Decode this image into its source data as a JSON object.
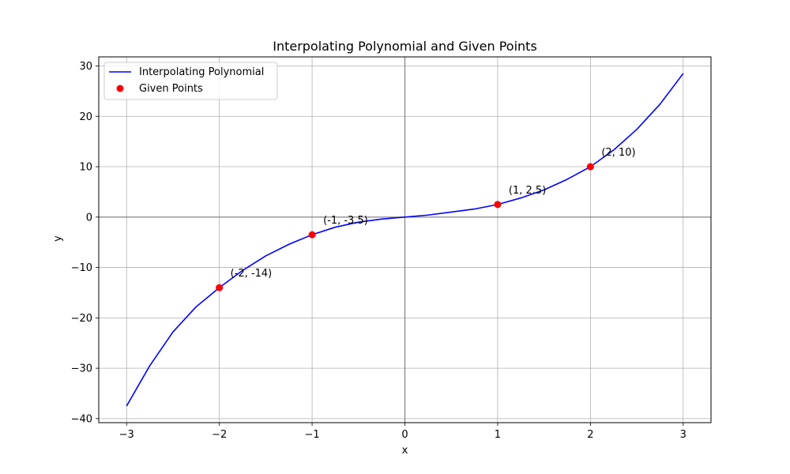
{
  "chart_data": {
    "type": "line",
    "title": "Interpolating Polynomial and Given Points",
    "xlabel": "x",
    "ylabel": "y",
    "xlim": [
      -3.3,
      3.3
    ],
    "ylim": [
      -40.8,
      31.8
    ],
    "xticks": [
      -3,
      -2,
      -1,
      0,
      1,
      2,
      3
    ],
    "yticks": [
      -40,
      -30,
      -20,
      -10,
      0,
      10,
      20,
      30
    ],
    "xtick_labels": [
      "−3",
      "−2",
      "−1",
      "0",
      "1",
      "2",
      "3"
    ],
    "ytick_labels": [
      "−40",
      "−30",
      "−20",
      "−10",
      "0",
      "10",
      "20",
      "30"
    ],
    "grid": true,
    "legend_position": "upper-left",
    "series": [
      {
        "name": "Interpolating Polynomial",
        "kind": "line",
        "color": "#0000ff",
        "x": [
          -3,
          -2.75,
          -2.5,
          -2.25,
          -2,
          -1.75,
          -1.5,
          -1.25,
          -1,
          -0.75,
          -0.5,
          -0.25,
          0,
          0.25,
          0.5,
          0.75,
          1,
          1.25,
          1.5,
          1.75,
          2,
          2.25,
          2.5,
          2.75,
          3
        ],
        "y": [
          -37.5,
          -29.5,
          -22.8,
          -17.8,
          -14.0,
          -10.6,
          -7.7,
          -5.4,
          -3.5,
          -2.0,
          -1.0,
          -0.4,
          0.0,
          0.4,
          1.0,
          1.6,
          2.5,
          3.8,
          5.4,
          7.5,
          10.0,
          13.3,
          17.4,
          22.4,
          28.5
        ]
      },
      {
        "name": "Given Points",
        "kind": "scatter",
        "color": "#ff0000",
        "x": [
          -2,
          -1,
          1,
          2
        ],
        "y": [
          -14,
          -3.5,
          2.5,
          10
        ]
      }
    ],
    "annotations": [
      {
        "text": "(-2, -14)",
        "x": -2,
        "y": -14
      },
      {
        "text": "(-1, -3.5)",
        "x": -1,
        "y": -3.5
      },
      {
        "text": "(1, 2.5)",
        "x": 1,
        "y": 2.5
      },
      {
        "text": "(2, 10)",
        "x": 2,
        "y": 10
      }
    ]
  }
}
